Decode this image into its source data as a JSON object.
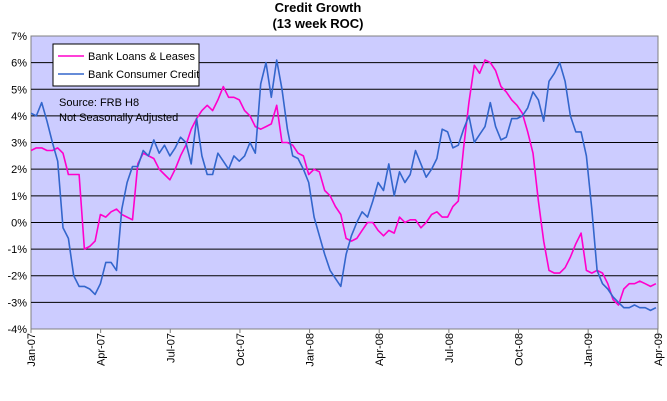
{
  "chart_data": {
    "type": "line",
    "title": "Credit Growth",
    "subtitle": "(13 week ROC)",
    "xlabel": "",
    "ylabel": "",
    "ylim": [
      -4,
      7
    ],
    "y_ticks": [
      "-4%",
      "-3%",
      "-2%",
      "-1%",
      "0%",
      "1%",
      "2%",
      "3%",
      "4%",
      "5%",
      "6%",
      "7%"
    ],
    "x_ticks": [
      "Jan-07",
      "Apr-07",
      "Jul-07",
      "Oct-07",
      "Jan-08",
      "Apr-08",
      "Jul-08",
      "Oct-08",
      "Jan-09",
      "Apr-09"
    ],
    "x_unit": "weeks since Jan-07",
    "xlim": [
      0,
      117.4
    ],
    "grid": "horizontal",
    "plot_background": "#ccccff",
    "legend_position": "top-left",
    "annotation": [
      "Source:  FRB H8",
      "Not Seasonally Adjusted"
    ],
    "series": [
      {
        "name": "Bank Loans & Leases",
        "color": "#ff00cc",
        "x": [
          0,
          1,
          2,
          3,
          4,
          5,
          6,
          7,
          8,
          9,
          10,
          11,
          12,
          13,
          14,
          15,
          16,
          17,
          18,
          19,
          20,
          21,
          22,
          23,
          24,
          25,
          26,
          27,
          28,
          29,
          30,
          31,
          32,
          33,
          34,
          35,
          36,
          37,
          38,
          39,
          40,
          41,
          42,
          43,
          44,
          45,
          46,
          47,
          48,
          49,
          50,
          51,
          52,
          53,
          54,
          55,
          56,
          57,
          58,
          59,
          60,
          61,
          62,
          63,
          64,
          65,
          66,
          67,
          68,
          69,
          70,
          71,
          72,
          73,
          74,
          75,
          76,
          77,
          78,
          79,
          80,
          81,
          82,
          83,
          84,
          85,
          86,
          87,
          88,
          89,
          90,
          91,
          92,
          93,
          94,
          95,
          96,
          97,
          98,
          99,
          100,
          101,
          102,
          103,
          104,
          105,
          106,
          107,
          108,
          109,
          110,
          111,
          112,
          113,
          114,
          115,
          116,
          117
        ],
        "values": [
          2.7,
          2.8,
          2.8,
          2.7,
          2.7,
          2.8,
          2.6,
          1.8,
          1.8,
          1.8,
          -1.0,
          -0.9,
          -0.7,
          0.3,
          0.2,
          0.4,
          0.5,
          0.3,
          0.2,
          0.1,
          2.2,
          2.6,
          2.5,
          2.4,
          2.0,
          1.8,
          1.6,
          2.0,
          2.5,
          2.9,
          3.5,
          3.9,
          4.2,
          4.4,
          4.2,
          4.6,
          5.1,
          4.7,
          4.7,
          4.6,
          4.2,
          4.0,
          3.6,
          3.5,
          3.6,
          3.7,
          4.4,
          3.0,
          3.0,
          2.9,
          2.6,
          2.5,
          1.8,
          2.0,
          1.9,
          1.2,
          1.0,
          0.6,
          0.3,
          -0.6,
          -0.7,
          -0.6,
          -0.3,
          0.0,
          0.0,
          -0.3,
          -0.5,
          -0.3,
          -0.4,
          0.2,
          0.0,
          0.1,
          0.1,
          -0.2,
          0.0,
          0.3,
          0.4,
          0.2,
          0.2,
          0.6,
          0.8,
          2.8,
          4.5,
          5.9,
          5.6,
          6.1,
          6.0,
          5.7,
          5.1,
          4.9,
          4.6,
          4.4,
          4.1,
          3.4,
          2.6,
          0.8,
          -0.7,
          -1.8,
          -1.9,
          -1.9,
          -1.7,
          -1.3,
          -0.8,
          -0.4,
          -1.8,
          -1.9,
          -1.8,
          -1.9,
          -2.3,
          -2.9,
          -3.1,
          -2.5,
          -2.3,
          -2.3,
          -2.2,
          -2.3,
          -2.4,
          -2.3
        ]
      },
      {
        "name": "Bank Consumer Credit",
        "color": "#3366cc",
        "x": [
          0,
          1,
          2,
          3,
          4,
          5,
          6,
          7,
          8,
          9,
          10,
          11,
          12,
          13,
          14,
          15,
          16,
          17,
          18,
          19,
          20,
          21,
          22,
          23,
          24,
          25,
          26,
          27,
          28,
          29,
          30,
          31,
          32,
          33,
          34,
          35,
          36,
          37,
          38,
          39,
          40,
          41,
          42,
          43,
          44,
          45,
          46,
          47,
          48,
          49,
          50,
          51,
          52,
          53,
          54,
          55,
          56,
          57,
          58,
          59,
          60,
          61,
          62,
          63,
          64,
          65,
          66,
          67,
          68,
          69,
          70,
          71,
          72,
          73,
          74,
          75,
          76,
          77,
          78,
          79,
          80,
          81,
          82,
          83,
          84,
          85,
          86,
          87,
          88,
          89,
          90,
          91,
          92,
          93,
          94,
          95,
          96,
          97,
          98,
          99,
          100,
          101,
          102,
          103,
          104,
          105,
          106,
          107,
          108,
          109,
          110,
          111,
          112,
          113,
          114,
          115,
          116,
          117
        ],
        "values": [
          4.1,
          4.0,
          4.5,
          3.8,
          3.0,
          2.3,
          -0.2,
          -0.6,
          -2.0,
          -2.4,
          -2.4,
          -2.5,
          -2.7,
          -2.3,
          -1.5,
          -1.5,
          -1.8,
          0.5,
          1.5,
          2.1,
          2.1,
          2.7,
          2.5,
          3.1,
          2.6,
          2.9,
          2.5,
          2.8,
          3.2,
          3.0,
          2.2,
          3.9,
          2.5,
          1.8,
          1.8,
          2.6,
          2.3,
          2.0,
          2.5,
          2.3,
          2.5,
          3.0,
          2.6,
          5.2,
          6.0,
          4.7,
          6.1,
          5.0,
          3.5,
          2.5,
          2.4,
          2.0,
          1.5,
          0.2,
          -0.5,
          -1.2,
          -1.8,
          -2.1,
          -2.4,
          -1.2,
          -0.5,
          0.0,
          0.4,
          0.2,
          0.8,
          1.5,
          1.2,
          2.2,
          1.0,
          1.9,
          1.5,
          1.8,
          2.7,
          2.2,
          1.7,
          2.0,
          2.4,
          3.5,
          3.4,
          2.8,
          2.9,
          3.5,
          4.0,
          3.0,
          3.3,
          3.6,
          4.5,
          3.6,
          3.1,
          3.2,
          3.9,
          3.9,
          4.0,
          4.3,
          4.9,
          4.6,
          3.8,
          5.3,
          5.6,
          6.0,
          5.3,
          4.0,
          3.4,
          3.4,
          2.5,
          0.5,
          -1.8,
          -2.3,
          -2.5,
          -2.8,
          -3.0,
          -3.2,
          -3.2,
          -3.1,
          -3.2,
          -3.2,
          -3.3,
          -3.2
        ]
      }
    ]
  },
  "colors": {
    "plot_background": "#ccccff",
    "grid": "#000000",
    "axis": "#808080"
  }
}
